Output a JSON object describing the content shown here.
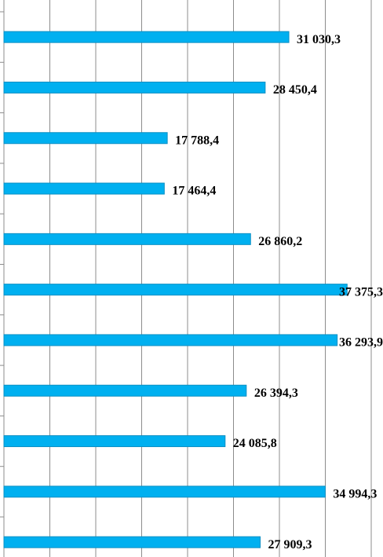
{
  "chart_data": {
    "type": "bar",
    "orientation": "horizontal",
    "categories": [
      null,
      null,
      null,
      null,
      null,
      null,
      null,
      null,
      null,
      null,
      null
    ],
    "values": [
      31030.3,
      28450.4,
      17788.4,
      17464.4,
      26860.2,
      37375.3,
      36293.9,
      26394.3,
      24085.8,
      34994.3,
      27909.3
    ],
    "value_labels": [
      "31 030,3",
      "28 450,4",
      "17 788,4",
      "17 464,4",
      "26 860,2",
      "37 375,3",
      "36 293,9",
      "26 394,3",
      "24 085,8",
      "34 994,3",
      "27 909,3"
    ],
    "color": "#00b0f0",
    "xlim": [
      0,
      40000
    ],
    "xticks": [
      0,
      5000,
      10000,
      15000,
      20000,
      25000,
      30000,
      35000,
      40000
    ],
    "grid": true
  }
}
